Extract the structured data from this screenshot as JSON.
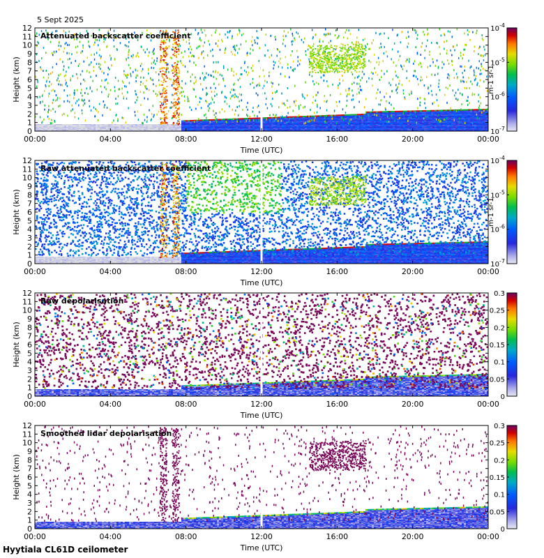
{
  "header": {
    "date": "5 Sept 2025"
  },
  "footer": {
    "station": "Hyytiala CL61D ceilometer"
  },
  "chart_data": [
    {
      "type": "heatmap",
      "title": "Attenuated backscatter coefficient",
      "xlabel": "Time (UTC)",
      "ylabel": "Height (km)",
      "x_ticks": [
        "00:00",
        "04:00",
        "08:00",
        "12:00",
        "16:00",
        "20:00",
        "00:00"
      ],
      "y_ticks": [
        "0",
        "1",
        "2",
        "3",
        "4",
        "5",
        "6",
        "7",
        "8",
        "9",
        "10",
        "11",
        "12"
      ],
      "ylim": [
        0,
        12
      ],
      "colorbar": {
        "scale": "log",
        "min": 1e-07,
        "max": 0.0001,
        "tick_labels": [
          "10-7",
          "10-6",
          "10-5",
          "10-4"
        ],
        "unit": "m-1 sr-1"
      },
      "variant": "atten"
    },
    {
      "type": "heatmap",
      "title": "Raw attenuated backscatter coefficient",
      "xlabel": "Time (UTC)",
      "ylabel": "Height (km)",
      "x_ticks": [
        "00:00",
        "04:00",
        "08:00",
        "12:00",
        "16:00",
        "20:00",
        "00:00"
      ],
      "y_ticks": [
        "0",
        "1",
        "2",
        "3",
        "4",
        "5",
        "6",
        "7",
        "8",
        "9",
        "10",
        "11",
        "12"
      ],
      "ylim": [
        0,
        12
      ],
      "colorbar": {
        "scale": "log",
        "min": 1e-07,
        "max": 0.0001,
        "tick_labels": [
          "10-7",
          "10-6",
          "10-5",
          "10-4"
        ],
        "unit": "m-1 sr-1"
      },
      "variant": "rawatten"
    },
    {
      "type": "heatmap",
      "title": "Raw depolarisation",
      "xlabel": "Time (UTC)",
      "ylabel": "Height (km)",
      "x_ticks": [
        "00:00",
        "04:00",
        "08:00",
        "12:00",
        "16:00",
        "20:00",
        "00:00"
      ],
      "y_ticks": [
        "0",
        "1",
        "2",
        "3",
        "4",
        "5",
        "6",
        "7",
        "8",
        "9",
        "10",
        "11",
        "12"
      ],
      "ylim": [
        0,
        12
      ],
      "colorbar": {
        "scale": "linear",
        "min": 0,
        "max": 0.3,
        "tick_labels": [
          "0",
          "0.05",
          "0.1",
          "0.15",
          "0.2",
          "0.25",
          "0.3"
        ],
        "unit": ""
      },
      "variant": "rawdepol"
    },
    {
      "type": "heatmap",
      "title": "Smoothed lidar depolarisation",
      "xlabel": "Time (UTC)",
      "ylabel": "Height (km)",
      "x_ticks": [
        "00:00",
        "04:00",
        "08:00",
        "12:00",
        "16:00",
        "20:00",
        "00:00"
      ],
      "y_ticks": [
        "0",
        "1",
        "2",
        "3",
        "4",
        "5",
        "6",
        "7",
        "8",
        "9",
        "10",
        "11",
        "12"
      ],
      "ylim": [
        0,
        12
      ],
      "colorbar": {
        "scale": "linear",
        "min": 0,
        "max": 0.3,
        "tick_labels": [
          "0",
          "0.05",
          "0.1",
          "0.15",
          "0.2",
          "0.25",
          "0.3"
        ],
        "unit": ""
      },
      "variant": "smoothdepol"
    }
  ]
}
